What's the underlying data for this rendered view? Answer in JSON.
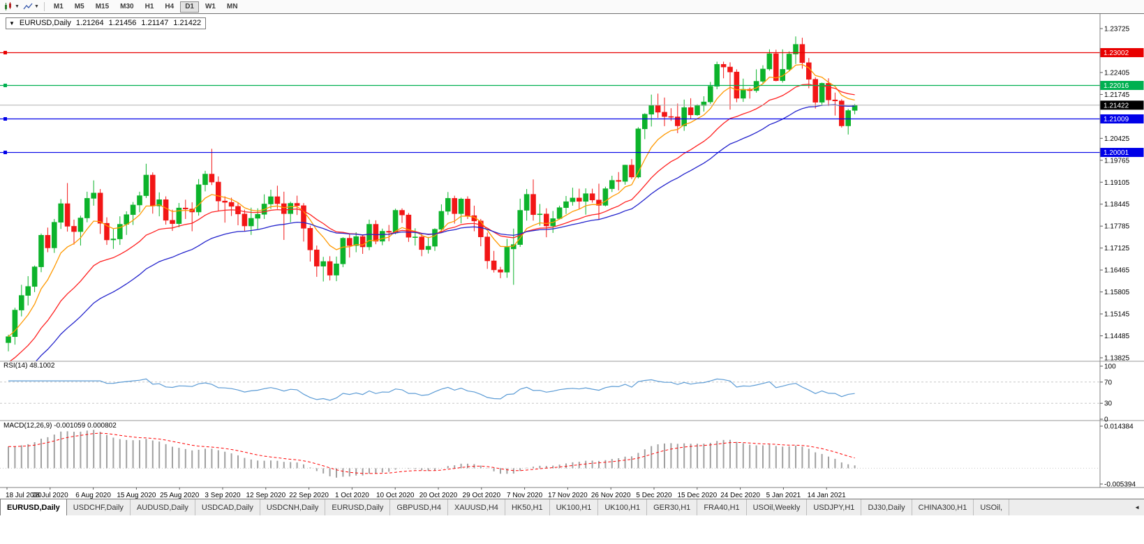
{
  "toolbar": {
    "timeframes": [
      "M1",
      "M5",
      "M15",
      "M30",
      "H1",
      "H4",
      "D1",
      "W1",
      "MN"
    ],
    "active_timeframe": "D1"
  },
  "chart": {
    "legend": {
      "symbol_period": "EURUSD,Daily",
      "open": "1.21264",
      "high": "1.21456",
      "low": "1.21147",
      "close": "1.21422"
    }
  },
  "rsi_pane": {
    "label": "RSI(14) 48.1002"
  },
  "macd_pane": {
    "label": "MACD(12,26,9) -0.001059 0.000802"
  },
  "tabs": {
    "items": [
      {
        "label": "EURUSD,Daily",
        "active": true
      },
      {
        "label": "USDCHF,Daily",
        "active": false
      },
      {
        "label": "AUDUSD,Daily",
        "active": false
      },
      {
        "label": "USDCAD,Daily",
        "active": false
      },
      {
        "label": "USDCNH,Daily",
        "active": false
      },
      {
        "label": "EURUSD,Daily",
        "active": false
      },
      {
        "label": "GBPUSD,H4",
        "active": false
      },
      {
        "label": "XAUUSD,H4",
        "active": false
      },
      {
        "label": "HK50,H1",
        "active": false
      },
      {
        "label": "UK100,H1",
        "active": false
      },
      {
        "label": "UK100,H1",
        "active": false
      },
      {
        "label": "GER30,H1",
        "active": false
      },
      {
        "label": "FRA40,H1",
        "active": false
      },
      {
        "label": "USOil,Weekly",
        "active": false
      },
      {
        "label": "USDJPY,H1",
        "active": false
      },
      {
        "label": "DJ30,Daily",
        "active": false
      },
      {
        "label": "CHINA300,H1",
        "active": false
      },
      {
        "label": "USOil,",
        "active": false
      }
    ],
    "scroll_left_icon": "◄"
  },
  "chart_data": {
    "type": "candlestick",
    "title": "EURUSD,Daily",
    "ylim": [
      1.13825,
      1.23725
    ],
    "candle_colors": {
      "up": "#0cb32b",
      "down": "#f21616"
    },
    "y_ticks": [
      {
        "value": 1.23725,
        "label": "1.23725"
      },
      {
        "value": 1.22405,
        "label": "1.22405"
      },
      {
        "value": 1.21745,
        "label": "1.21745"
      },
      {
        "value": 1.20425,
        "label": "1.20425"
      },
      {
        "value": 1.19765,
        "label": "1.19765"
      },
      {
        "value": 1.19105,
        "label": "1.19105"
      },
      {
        "value": 1.18445,
        "label": "1.18445"
      },
      {
        "value": 1.17785,
        "label": "1.17785"
      },
      {
        "value": 1.17125,
        "label": "1.17125"
      },
      {
        "value": 1.16465,
        "label": "1.16465"
      },
      {
        "value": 1.15805,
        "label": "1.15805"
      },
      {
        "value": 1.15145,
        "label": "1.15145"
      },
      {
        "value": 1.14485,
        "label": "1.14485"
      },
      {
        "value": 1.13825,
        "label": "1.13825"
      }
    ],
    "hlines": [
      {
        "value": 1.23002,
        "label": "1.23002",
        "color": "#e80000"
      },
      {
        "value": 1.22016,
        "label": "1.22016",
        "color": "#00b050"
      },
      {
        "value": 1.21009,
        "label": "1.21009",
        "color": "#0000e8"
      },
      {
        "value": 1.20001,
        "label": "1.20001",
        "color": "#0000e8"
      }
    ],
    "current_price": {
      "value": 1.21422,
      "label": "1.21422",
      "badge_bg": "#000000",
      "line_color": "#b0b0b0"
    },
    "moving_averages": [
      {
        "name": "ma-fast-orange",
        "period": 8,
        "color": "#ff9900",
        "seed": null
      },
      {
        "name": "ma-mid-red",
        "period": 20,
        "color": "#ff2020",
        "seed": 1.136
      },
      {
        "name": "ma-slow-blue",
        "period": 34,
        "color": "#2222cc",
        "seed": 1.13
      }
    ],
    "rsi": {
      "period": 14,
      "current": 48.1002,
      "color": "#5b9bd5",
      "levels": [
        {
          "value": 100,
          "label": "100"
        },
        {
          "value": 70,
          "label": "70"
        },
        {
          "value": 30,
          "label": "30"
        },
        {
          "value": 0,
          "label": "0"
        }
      ]
    },
    "macd": {
      "fast": 12,
      "slow": 26,
      "signal": 9,
      "current_hist": -0.001059,
      "current_signal": 0.000802,
      "hist_color": "#a0a0a0",
      "signal_color": "#ff0000",
      "scale": [
        {
          "value": 0.014384,
          "label": "0.014384"
        },
        {
          "value": -0.005394,
          "label": "-0.005394"
        }
      ]
    },
    "x_labels": [
      "18 Jul 2020",
      "28 Jul 2020",
      "6 Aug 2020",
      "15 Aug 2020",
      "25 Aug 2020",
      "3 Sep 2020",
      "12 Sep 2020",
      "22 Sep 2020",
      "1 Oct 2020",
      "10 Oct 2020",
      "20 Oct 2020",
      "29 Oct 2020",
      "7 Nov 2020",
      "17 Nov 2020",
      "26 Nov 2020",
      "5 Dec 2020",
      "15 Dec 2020",
      "24 Dec 2020",
      "5 Jan 2021",
      "14 Jan 2021"
    ],
    "ohlc": [
      [
        1.1428,
        1.1452,
        1.1402,
        1.1446
      ],
      [
        1.1446,
        1.1533,
        1.1422,
        1.1526
      ],
      [
        1.1526,
        1.1602,
        1.1507,
        1.157
      ],
      [
        1.157,
        1.1628,
        1.154,
        1.1597
      ],
      [
        1.1597,
        1.166,
        1.158,
        1.1656
      ],
      [
        1.1656,
        1.1756,
        1.164,
        1.1751
      ],
      [
        1.1751,
        1.1774,
        1.17,
        1.1713
      ],
      [
        1.1713,
        1.18,
        1.1698,
        1.179
      ],
      [
        1.179,
        1.186,
        1.177,
        1.1846
      ],
      [
        1.1846,
        1.1908,
        1.1762,
        1.1778
      ],
      [
        1.1778,
        1.1798,
        1.1723,
        1.1762
      ],
      [
        1.1762,
        1.181,
        1.172,
        1.1803
      ],
      [
        1.1803,
        1.1882,
        1.179,
        1.1862
      ],
      [
        1.1862,
        1.1916,
        1.184,
        1.1878
      ],
      [
        1.1878,
        1.189,
        1.1755,
        1.1787
      ],
      [
        1.1787,
        1.1805,
        1.1722,
        1.1737
      ],
      [
        1.1737,
        1.177,
        1.171,
        1.174
      ],
      [
        1.174,
        1.1808,
        1.1722,
        1.1784
      ],
      [
        1.1784,
        1.1823,
        1.1752,
        1.1813
      ],
      [
        1.1813,
        1.1851,
        1.1782,
        1.1842
      ],
      [
        1.1842,
        1.1882,
        1.182,
        1.187
      ],
      [
        1.187,
        1.1966,
        1.1863,
        1.1932
      ],
      [
        1.1932,
        1.194,
        1.1816,
        1.1839
      ],
      [
        1.1839,
        1.188,
        1.1808,
        1.1858
      ],
      [
        1.1858,
        1.1868,
        1.1783,
        1.1796
      ],
      [
        1.1796,
        1.1828,
        1.1764,
        1.1786
      ],
      [
        1.1786,
        1.1848,
        1.1775,
        1.1833
      ],
      [
        1.1833,
        1.1858,
        1.18,
        1.183
      ],
      [
        1.183,
        1.185,
        1.1763,
        1.1821
      ],
      [
        1.1821,
        1.192,
        1.181,
        1.1903
      ],
      [
        1.1903,
        1.1945,
        1.1883,
        1.1935
      ],
      [
        1.1935,
        1.2011,
        1.1902,
        1.1911
      ],
      [
        1.1911,
        1.1928,
        1.1823,
        1.1854
      ],
      [
        1.1854,
        1.1868,
        1.1789,
        1.185
      ],
      [
        1.185,
        1.1864,
        1.1809,
        1.1838
      ],
      [
        1.1838,
        1.1849,
        1.1781,
        1.1815
      ],
      [
        1.1815,
        1.1828,
        1.1762,
        1.1779
      ],
      [
        1.1779,
        1.1834,
        1.1752,
        1.1802
      ],
      [
        1.1802,
        1.1832,
        1.177,
        1.1814
      ],
      [
        1.1814,
        1.1874,
        1.18,
        1.1845
      ],
      [
        1.1845,
        1.1888,
        1.183,
        1.1867
      ],
      [
        1.1867,
        1.19,
        1.183,
        1.1846
      ],
      [
        1.1846,
        1.1882,
        1.1737,
        1.1816
      ],
      [
        1.1816,
        1.1852,
        1.179,
        1.1847
      ],
      [
        1.1847,
        1.187,
        1.1812,
        1.184
      ],
      [
        1.184,
        1.1848,
        1.1732,
        1.1772
      ],
      [
        1.1772,
        1.178,
        1.1672,
        1.1707
      ],
      [
        1.1707,
        1.172,
        1.1626,
        1.1658
      ],
      [
        1.1658,
        1.1686,
        1.1612,
        1.1672
      ],
      [
        1.1672,
        1.1688,
        1.1615,
        1.1631
      ],
      [
        1.1631,
        1.1687,
        1.1613,
        1.1665
      ],
      [
        1.1665,
        1.1745,
        1.1655,
        1.1742
      ],
      [
        1.1742,
        1.1755,
        1.1684,
        1.172
      ],
      [
        1.172,
        1.176,
        1.17,
        1.1747
      ],
      [
        1.1747,
        1.1752,
        1.1695,
        1.1716
      ],
      [
        1.1716,
        1.1798,
        1.1706,
        1.1784
      ],
      [
        1.1784,
        1.1796,
        1.1724,
        1.1733
      ],
      [
        1.1733,
        1.1771,
        1.1721,
        1.1763
      ],
      [
        1.1763,
        1.1782,
        1.1733,
        1.176
      ],
      [
        1.176,
        1.1831,
        1.1754,
        1.1826
      ],
      [
        1.1826,
        1.1832,
        1.1788,
        1.1812
      ],
      [
        1.1812,
        1.1818,
        1.1731,
        1.1745
      ],
      [
        1.1745,
        1.1772,
        1.172,
        1.1746
      ],
      [
        1.1746,
        1.1758,
        1.1688,
        1.1708
      ],
      [
        1.1708,
        1.1746,
        1.1696,
        1.1718
      ],
      [
        1.1718,
        1.1772,
        1.1704,
        1.1769
      ],
      [
        1.1769,
        1.1844,
        1.1762,
        1.1823
      ],
      [
        1.1823,
        1.1881,
        1.1812,
        1.1862
      ],
      [
        1.1862,
        1.187,
        1.1786,
        1.1816
      ],
      [
        1.1816,
        1.1864,
        1.1787,
        1.186
      ],
      [
        1.186,
        1.1868,
        1.18,
        1.181
      ],
      [
        1.181,
        1.184,
        1.1763,
        1.1794
      ],
      [
        1.1794,
        1.18,
        1.1718,
        1.1746
      ],
      [
        1.1746,
        1.1759,
        1.165,
        1.1674
      ],
      [
        1.1674,
        1.1704,
        1.1639,
        1.1647
      ],
      [
        1.1647,
        1.1656,
        1.1622,
        1.164
      ],
      [
        1.164,
        1.174,
        1.1623,
        1.1715
      ],
      [
        1.171,
        1.1771,
        1.1602,
        1.1723
      ],
      [
        1.1723,
        1.1861,
        1.1716,
        1.1826
      ],
      [
        1.1826,
        1.189,
        1.1795,
        1.1874
      ],
      [
        1.1874,
        1.1919,
        1.1795,
        1.1813
      ],
      [
        1.1813,
        1.1845,
        1.178,
        1.1815
      ],
      [
        1.1815,
        1.1832,
        1.1745,
        1.1779
      ],
      [
        1.1779,
        1.1824,
        1.1758,
        1.1801
      ],
      [
        1.1801,
        1.184,
        1.1799,
        1.1834
      ],
      [
        1.1834,
        1.1869,
        1.1815,
        1.1852
      ],
      [
        1.1852,
        1.1894,
        1.184,
        1.1863
      ],
      [
        1.1863,
        1.1891,
        1.183,
        1.1853
      ],
      [
        1.1853,
        1.1892,
        1.1813,
        1.1876
      ],
      [
        1.1876,
        1.1891,
        1.1849,
        1.1857
      ],
      [
        1.1857,
        1.1906,
        1.18,
        1.1841
      ],
      [
        1.1841,
        1.1897,
        1.1838,
        1.1891
      ],
      [
        1.1891,
        1.193,
        1.1881,
        1.1916
      ],
      [
        1.1916,
        1.1941,
        1.1886,
        1.1913
      ],
      [
        1.1913,
        1.1963,
        1.1903,
        1.1962
      ],
      [
        1.1962,
        1.198,
        1.192,
        1.1926
      ],
      [
        1.1926,
        1.2076,
        1.1922,
        1.2071
      ],
      [
        1.2071,
        1.2118,
        1.204,
        1.2115
      ],
      [
        1.2115,
        1.2174,
        1.2078,
        1.2142
      ],
      [
        1.2142,
        1.2177,
        1.2104,
        1.2121
      ],
      [
        1.2121,
        1.2165,
        1.2079,
        1.2108
      ],
      [
        1.2108,
        1.2133,
        1.2095,
        1.2107
      ],
      [
        1.2107,
        1.2147,
        1.2058,
        1.208
      ],
      [
        1.208,
        1.2159,
        1.2065,
        1.2135
      ],
      [
        1.2135,
        1.2163,
        1.21,
        1.2113
      ],
      [
        1.2113,
        1.2145,
        1.211,
        1.2141
      ],
      [
        1.2141,
        1.2169,
        1.2123,
        1.2152
      ],
      [
        1.2152,
        1.2212,
        1.2146,
        1.2199
      ],
      [
        1.2199,
        1.2273,
        1.219,
        1.2265
      ],
      [
        1.2265,
        1.2273,
        1.2223,
        1.2257
      ],
      [
        1.2257,
        1.2271,
        1.2129,
        1.2242
      ],
      [
        1.2242,
        1.225,
        1.2151,
        1.2163
      ],
      [
        1.2163,
        1.2222,
        1.2152,
        1.219
      ],
      [
        1.219,
        1.2195,
        1.2162,
        1.2186
      ],
      [
        1.2186,
        1.225,
        1.218,
        1.2214
      ],
      [
        1.2214,
        1.2262,
        1.2208,
        1.2251
      ],
      [
        1.2251,
        1.231,
        1.2246,
        1.2297
      ],
      [
        1.2297,
        1.2309,
        1.2214,
        1.2216
      ],
      [
        1.2216,
        1.231,
        1.221,
        1.225
      ],
      [
        1.225,
        1.2304,
        1.2245,
        1.2296
      ],
      [
        1.2296,
        1.2349,
        1.2266,
        1.2325
      ],
      [
        1.2325,
        1.2345,
        1.2252,
        1.227
      ],
      [
        1.227,
        1.2284,
        1.2193,
        1.222
      ],
      [
        1.222,
        1.2226,
        1.2132,
        1.2151
      ],
      [
        1.2151,
        1.221,
        1.214,
        1.2208
      ],
      [
        1.2208,
        1.2223,
        1.214,
        1.2158
      ],
      [
        1.2158,
        1.218,
        1.2111,
        1.2155
      ],
      [
        1.2155,
        1.216,
        1.2075,
        1.208
      ],
      [
        1.208,
        1.2131,
        1.2054,
        1.2126
      ],
      [
        1.21264,
        1.21456,
        1.21147,
        1.21422
      ]
    ]
  }
}
